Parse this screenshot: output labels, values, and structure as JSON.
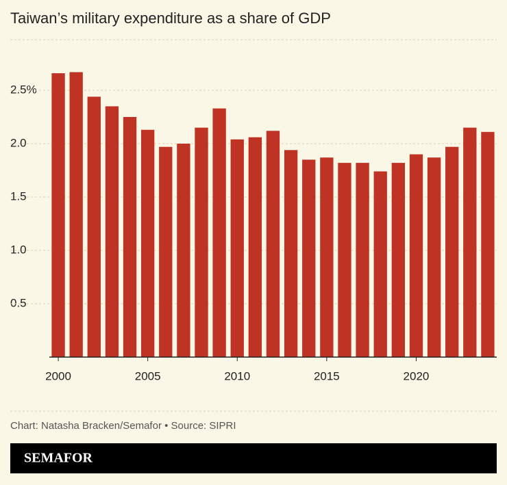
{
  "chart_data": {
    "type": "bar",
    "title": "Taiwan’s military expenditure as a share of GDP",
    "x": [
      2000,
      2001,
      2002,
      2003,
      2004,
      2005,
      2006,
      2007,
      2008,
      2009,
      2010,
      2011,
      2012,
      2013,
      2014,
      2015,
      2016,
      2017,
      2018,
      2019,
      2020,
      2021,
      2022,
      2023,
      2024
    ],
    "values": [
      2.66,
      2.67,
      2.44,
      2.35,
      2.25,
      2.13,
      1.97,
      2.0,
      2.15,
      2.33,
      2.04,
      2.06,
      2.12,
      1.94,
      1.85,
      1.87,
      1.82,
      1.82,
      1.74,
      1.82,
      1.9,
      1.87,
      1.97,
      2.15,
      2.11
    ],
    "color": "#bf3324",
    "xlim": [
      1999.5,
      2024.5
    ],
    "xticks": [
      2000,
      2005,
      2010,
      2015,
      2020
    ],
    "ylim": [
      0,
      3
    ],
    "yticks": [
      {
        "value": 0.5,
        "label": "0.5"
      },
      {
        "value": 1,
        "label": "1.0"
      },
      {
        "value": 1.5,
        "label": "1.5"
      },
      {
        "value": 2,
        "label": "2.0"
      },
      {
        "value": 2.5,
        "label": "2.5%"
      }
    ],
    "grid": true
  },
  "footer": {
    "credit": "Chart: Natasha Bracken/Semafor • Source: SIPRI",
    "logo": "SEMAFOR"
  }
}
